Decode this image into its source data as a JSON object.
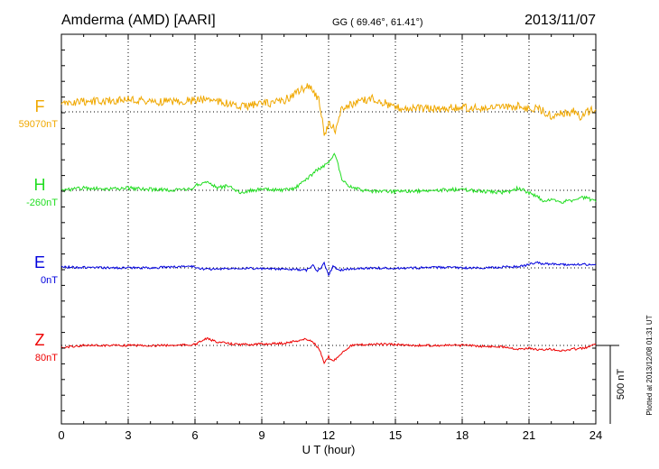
{
  "chart_data": {
    "type": "line",
    "title": "Amderma (AMD)  [AARI]",
    "coords": "GG ( 69.46°,  61.41°)",
    "date": "2013/11/07",
    "xlabel": "U T (hour)",
    "xlim": [
      0,
      24
    ],
    "xticks": [
      "0",
      "3",
      "6",
      "9",
      "12",
      "15",
      "18",
      "21",
      "24"
    ],
    "scale_label": "500 nT",
    "footer": "Plotted at 2013/12/08 01:31 UT",
    "series": [
      {
        "name": "F",
        "baseline_label": "59070nT",
        "color": "#f0a800",
        "points": [
          [
            0,
            15
          ],
          [
            0.5,
            20
          ],
          [
            1,
            22
          ],
          [
            2,
            24
          ],
          [
            3,
            28
          ],
          [
            4,
            22
          ],
          [
            5,
            24
          ],
          [
            6,
            25
          ],
          [
            6.6,
            30
          ],
          [
            7,
            24
          ],
          [
            8,
            10
          ],
          [
            9,
            18
          ],
          [
            9.5,
            20
          ],
          [
            10,
            25
          ],
          [
            10.5,
            40
          ],
          [
            11,
            55
          ],
          [
            11.3,
            50
          ],
          [
            11.6,
            20
          ],
          [
            11.8,
            -50
          ],
          [
            12,
            -25
          ],
          [
            12.3,
            -40
          ],
          [
            12.6,
            10
          ],
          [
            13,
            15
          ],
          [
            13.5,
            25
          ],
          [
            14,
            30
          ],
          [
            14.5,
            20
          ],
          [
            15,
            10
          ],
          [
            16,
            8
          ],
          [
            17,
            8
          ],
          [
            18,
            10
          ],
          [
            19,
            6
          ],
          [
            20,
            10
          ],
          [
            20.5,
            12
          ],
          [
            21,
            8
          ],
          [
            21.5,
            5
          ],
          [
            22,
            -8
          ],
          [
            23,
            0
          ],
          [
            23.3,
            -12
          ],
          [
            23.6,
            0
          ],
          [
            24,
            5
          ]
        ]
      },
      {
        "name": "H",
        "baseline_label": "-260nT",
        "color": "#22dd22",
        "points": [
          [
            0,
            0
          ],
          [
            1,
            5
          ],
          [
            2,
            3
          ],
          [
            3,
            5
          ],
          [
            4,
            2
          ],
          [
            5,
            0
          ],
          [
            5.8,
            2
          ],
          [
            6,
            10
          ],
          [
            6.5,
            20
          ],
          [
            7,
            5
          ],
          [
            7.5,
            10
          ],
          [
            8,
            -5
          ],
          [
            8.5,
            0
          ],
          [
            9,
            2
          ],
          [
            10,
            0
          ],
          [
            10.5,
            5
          ],
          [
            11,
            25
          ],
          [
            11.5,
            45
          ],
          [
            12,
            60
          ],
          [
            12.3,
            80
          ],
          [
            12.6,
            20
          ],
          [
            13,
            8
          ],
          [
            13.5,
            0
          ],
          [
            14,
            -2
          ],
          [
            15,
            -3
          ],
          [
            16,
            -2
          ],
          [
            17,
            0
          ],
          [
            18,
            2
          ],
          [
            19,
            -3
          ],
          [
            20,
            -5
          ],
          [
            20.5,
            5
          ],
          [
            21,
            -5
          ],
          [
            21.3,
            -12
          ],
          [
            21.7,
            -25
          ],
          [
            22,
            -20
          ],
          [
            22.5,
            -25
          ],
          [
            23,
            -22
          ],
          [
            23.5,
            -15
          ],
          [
            24,
            -25
          ]
        ]
      },
      {
        "name": "E",
        "baseline_label": "0nT",
        "color": "#0000dd",
        "points": [
          [
            0,
            2
          ],
          [
            2,
            0
          ],
          [
            4,
            0
          ],
          [
            5,
            2
          ],
          [
            5.8,
            4
          ],
          [
            6.3,
            -2
          ],
          [
            7,
            -3
          ],
          [
            8,
            0
          ],
          [
            9,
            -2
          ],
          [
            10,
            -3
          ],
          [
            11,
            -5
          ],
          [
            11.3,
            5
          ],
          [
            11.5,
            -8
          ],
          [
            11.8,
            10
          ],
          [
            12,
            -15
          ],
          [
            12.2,
            3
          ],
          [
            12.5,
            -5
          ],
          [
            13,
            -2
          ],
          [
            14,
            0
          ],
          [
            15,
            -1
          ],
          [
            16,
            0
          ],
          [
            17,
            1
          ],
          [
            18,
            0
          ],
          [
            19,
            0
          ],
          [
            20,
            2
          ],
          [
            20.5,
            3
          ],
          [
            20.8,
            5
          ],
          [
            21,
            8
          ],
          [
            21.3,
            12
          ],
          [
            21.6,
            9
          ],
          [
            22,
            8
          ],
          [
            23,
            7
          ],
          [
            24,
            8
          ]
        ]
      },
      {
        "name": "Z",
        "baseline_label": "80nT",
        "color": "#ee0000",
        "points": [
          [
            0,
            -5
          ],
          [
            0.5,
            -2
          ],
          [
            1,
            0
          ],
          [
            3,
            0
          ],
          [
            5,
            0
          ],
          [
            6,
            2
          ],
          [
            6.5,
            15
          ],
          [
            7,
            8
          ],
          [
            7.5,
            4
          ],
          [
            8,
            2
          ],
          [
            9,
            3
          ],
          [
            10,
            5
          ],
          [
            11,
            14
          ],
          [
            11.3,
            8
          ],
          [
            11.6,
            -10
          ],
          [
            11.8,
            -40
          ],
          [
            12,
            -25
          ],
          [
            12.2,
            -35
          ],
          [
            12.5,
            -20
          ],
          [
            13,
            0
          ],
          [
            14,
            3
          ],
          [
            15,
            2
          ],
          [
            16,
            0
          ],
          [
            17,
            0
          ],
          [
            18,
            0
          ],
          [
            19,
            -2
          ],
          [
            20,
            -3
          ],
          [
            20.5,
            -8
          ],
          [
            21,
            -6
          ],
          [
            21.5,
            -10
          ],
          [
            22,
            -8
          ],
          [
            22.5,
            -12
          ],
          [
            23,
            -8
          ],
          [
            23.5,
            -6
          ],
          [
            24,
            2
          ]
        ]
      }
    ]
  }
}
